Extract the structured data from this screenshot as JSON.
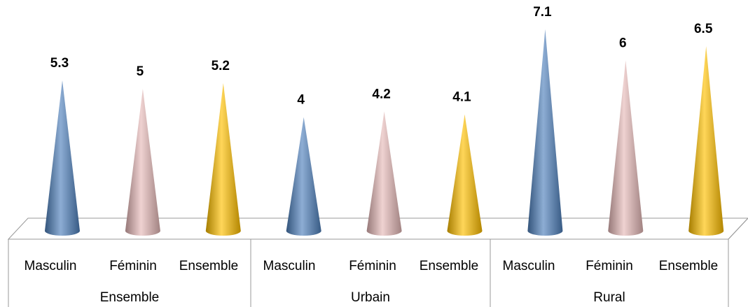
{
  "chart_data": {
    "type": "cone",
    "groups": [
      "Ensemble",
      "Urbain",
      "Rural"
    ],
    "categories": [
      "Masculin",
      "Féminin",
      "Ensemble",
      "Masculin",
      "Féminin",
      "Ensemble",
      "Masculin",
      "Féminin",
      "Ensemble"
    ],
    "values": [
      5.3,
      5,
      5.2,
      4,
      4.2,
      4.1,
      7.1,
      6,
      6.5
    ],
    "colors": [
      "#4f81bd",
      "#e6b9b8",
      "#ffc000",
      "#4f81bd",
      "#e6b9b8",
      "#ffc000",
      "#4f81bd",
      "#e6b9b8",
      "#ffc000"
    ]
  }
}
